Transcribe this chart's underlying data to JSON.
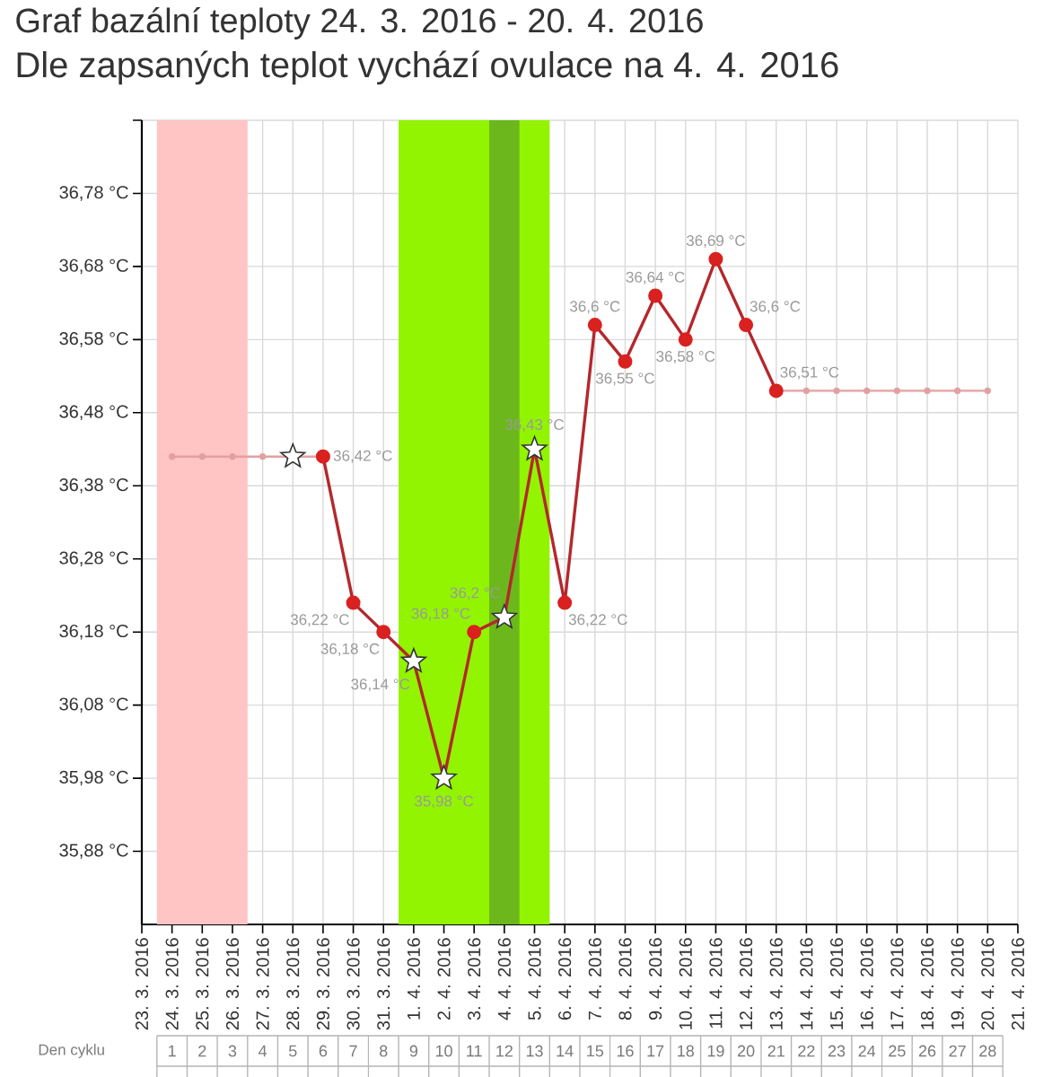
{
  "chart_data": {
    "type": "line",
    "title": "Graf bazální teploty 24. 3. 2016 - 20. 4. 2016",
    "subtitle": "Dle zapsaných teplot vychází ovulace na 4. 4. 2016",
    "x2label": "Den cyklu",
    "xlim": [
      "2016-03-23",
      "2016-04-21"
    ],
    "xticks": [
      {
        "value": "2016-03-23",
        "label": "23. 3. 2016"
      },
      {
        "value": "2016-03-24",
        "label": "24. 3. 2016"
      },
      {
        "value": "2016-03-25",
        "label": "25. 3. 2016"
      },
      {
        "value": "2016-03-26",
        "label": "26. 3. 2016"
      },
      {
        "value": "2016-03-27",
        "label": "27. 3. 2016"
      },
      {
        "value": "2016-03-28",
        "label": "28. 3. 2016"
      },
      {
        "value": "2016-03-29",
        "label": "29. 3. 2016"
      },
      {
        "value": "2016-03-30",
        "label": "30. 3. 2016"
      },
      {
        "value": "2016-03-31",
        "label": "31. 3. 2016"
      },
      {
        "value": "2016-04-01",
        "label": "1. 4. 2016"
      },
      {
        "value": "2016-04-02",
        "label": "2. 4. 2016"
      },
      {
        "value": "2016-04-03",
        "label": "3. 4. 2016"
      },
      {
        "value": "2016-04-04",
        "label": "4. 4. 2016"
      },
      {
        "value": "2016-04-05",
        "label": "5. 4. 2016"
      },
      {
        "value": "2016-04-06",
        "label": "6. 4. 2016"
      },
      {
        "value": "2016-04-07",
        "label": "7. 4. 2016"
      },
      {
        "value": "2016-04-08",
        "label": "8. 4. 2016"
      },
      {
        "value": "2016-04-09",
        "label": "9. 4. 2016"
      },
      {
        "value": "2016-04-10",
        "label": "10. 4. 2016"
      },
      {
        "value": "2016-04-11",
        "label": "11. 4. 2016"
      },
      {
        "value": "2016-04-12",
        "label": "12. 4. 2016"
      },
      {
        "value": "2016-04-13",
        "label": "13. 4. 2016"
      },
      {
        "value": "2016-04-14",
        "label": "14. 4. 2016"
      },
      {
        "value": "2016-04-15",
        "label": "15. 4. 2016"
      },
      {
        "value": "2016-04-16",
        "label": "16. 4. 2016"
      },
      {
        "value": "2016-04-17",
        "label": "17. 4. 2016"
      },
      {
        "value": "2016-04-18",
        "label": "18. 4. 2016"
      },
      {
        "value": "2016-04-19",
        "label": "19. 4. 2016"
      },
      {
        "value": "2016-04-20",
        "label": "20. 4. 2016"
      },
      {
        "value": "2016-04-21",
        "label": "21. 4. 2016"
      }
    ],
    "x2lim": [
      0.5,
      28.5
    ],
    "x2ticks": [
      1,
      2,
      3,
      4,
      5,
      6,
      7,
      8,
      9,
      10,
      11,
      12,
      13,
      14,
      15,
      16,
      17,
      18,
      19,
      20,
      21,
      22,
      23,
      24,
      25,
      26,
      27,
      28
    ],
    "ylim": [
      35.78,
      36.88
    ],
    "yticks": [
      {
        "value": 35.88,
        "label": "35,88 °C"
      },
      {
        "value": 35.98,
        "label": "35,98 °C"
      },
      {
        "value": 36.08,
        "label": "36,08 °C"
      },
      {
        "value": 36.18,
        "label": "36,18 °C"
      },
      {
        "value": 36.28,
        "label": "36,28 °C"
      },
      {
        "value": 36.38,
        "label": "36,38 °C"
      },
      {
        "value": 36.48,
        "label": "36,48 °C"
      },
      {
        "value": 36.58,
        "label": "36,58 °C"
      },
      {
        "value": 36.68,
        "label": "36,68 °C"
      },
      {
        "value": 36.78,
        "label": "36,78 °C"
      },
      {
        "value": 36.88,
        "label": null
      }
    ],
    "grid": true,
    "bands": [
      {
        "axis": "x",
        "from": "2016-03-23T12:00",
        "to": "2016-03-26T12:00",
        "color": "#ffc4c4"
      },
      {
        "axis": "x",
        "from": "2016-03-31T12:00",
        "to": "2016-04-05T12:00",
        "color": "#92f400"
      },
      {
        "axis": "x",
        "from": "2016-04-03T12:00",
        "to": "2016-04-04T12:00",
        "color": "#6cb81c"
      }
    ],
    "series": [
      {
        "type": "line",
        "color": "#e3a0a0",
        "marker": "circle",
        "x": [
          "2016-03-24",
          "2016-03-25",
          "2016-03-26",
          "2016-03-27",
          "2016-03-28",
          "2016-03-29"
        ],
        "values": [
          36.42,
          36.42,
          36.42,
          36.42,
          36.42,
          36.42
        ]
      },
      {
        "type": "line",
        "color": "#e3a0a0",
        "marker": "circle",
        "x": [
          "2016-04-13",
          "2016-04-14",
          "2016-04-15",
          "2016-04-16",
          "2016-04-17",
          "2016-04-18",
          "2016-04-19",
          "2016-04-20"
        ],
        "values": [
          36.51,
          36.51,
          36.51,
          36.51,
          36.51,
          36.51,
          36.51,
          36.51
        ]
      },
      {
        "type": "line",
        "color": "#b3282d",
        "marker": "none",
        "x": [
          "2016-03-29",
          "2016-03-30",
          "2016-03-31",
          "2016-04-01",
          "2016-04-02",
          "2016-04-03",
          "2016-04-04",
          "2016-04-05",
          "2016-04-06",
          "2016-04-07",
          "2016-04-08",
          "2016-04-09",
          "2016-04-10",
          "2016-04-11",
          "2016-04-12",
          "2016-04-13"
        ],
        "values": [
          36.42,
          36.22,
          36.18,
          36.14,
          35.98,
          36.18,
          36.2,
          36.43,
          36.22,
          36.6,
          36.55,
          36.64,
          36.58,
          36.69,
          36.6,
          36.51
        ],
        "value_labels": [
          "36,42 °C",
          "36,22 °C",
          "36,18 °C",
          "36,14 °C",
          "35,98 °C",
          "36,18 °C",
          "36,2 °C",
          "36,43 °C",
          "36,22 °C",
          "36,6 °C",
          "36,55 °C",
          "36,64 °C",
          "36,58 °C",
          "36,69 °C",
          "36,6 °C",
          "36,51 °C"
        ]
      },
      {
        "type": "scatter",
        "color": "#d9211f",
        "marker": "circle",
        "x": [
          "2016-03-29",
          "2016-03-30",
          "2016-03-31",
          "2016-04-03",
          "2016-04-06",
          "2016-04-07",
          "2016-04-08",
          "2016-04-09",
          "2016-04-10",
          "2016-04-11",
          "2016-04-12",
          "2016-04-13"
        ],
        "values": [
          36.42,
          36.22,
          36.18,
          36.18,
          36.22,
          36.6,
          36.55,
          36.64,
          36.58,
          36.69,
          36.6,
          36.51
        ]
      },
      {
        "type": "scatter",
        "color": "#ffffff",
        "marker": "star",
        "x": [
          "2016-03-28",
          "2016-04-01",
          "2016-04-02",
          "2016-04-04",
          "2016-04-05"
        ],
        "values": [
          36.42,
          36.14,
          35.98,
          36.2,
          36.43
        ]
      }
    ]
  }
}
